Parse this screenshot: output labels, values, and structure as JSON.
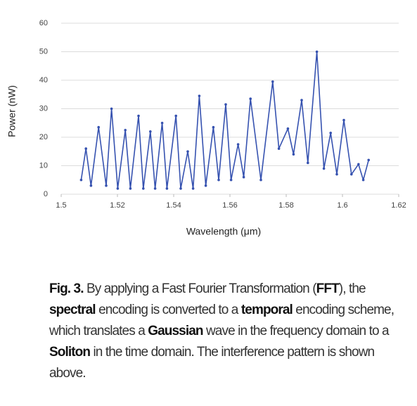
{
  "chart_data": {
    "type": "line",
    "xlabel": "Wavelength (μm)",
    "ylabel": "Power (nW)",
    "xlim": [
      1.5,
      1.62
    ],
    "xticks": [
      1.5,
      1.52,
      1.54,
      1.56,
      1.58,
      1.6,
      1.62
    ],
    "ylim": [
      0,
      60
    ],
    "yticks": [
      0,
      10,
      20,
      30,
      40,
      50,
      60
    ],
    "grid": true,
    "series": [
      {
        "color": "#3652b0",
        "x": [
          1.5071,
          1.5088,
          1.5106,
          1.5133,
          1.516,
          1.5179,
          1.5201,
          1.5228,
          1.5246,
          1.5275,
          1.5292,
          1.5317,
          1.5334,
          1.5359,
          1.5376,
          1.5408,
          1.5425,
          1.545,
          1.5469,
          1.5491,
          1.5514,
          1.5541,
          1.556,
          1.5585,
          1.5604,
          1.5629,
          1.5649,
          1.5673,
          1.571,
          1.5752,
          1.5774,
          1.5806,
          1.5826,
          1.5855,
          1.5877,
          1.5909,
          1.5934,
          1.5958,
          1.598,
          1.6005,
          1.6032,
          1.6057,
          1.6074,
          1.6093
        ],
        "values": [
          5,
          16,
          3,
          23.5,
          3,
          30,
          2,
          22.5,
          2,
          27.5,
          2,
          22,
          2,
          25,
          2,
          27.5,
          2,
          15,
          2,
          34.5,
          3,
          23.5,
          5,
          31.5,
          5,
          17.5,
          6,
          33.5,
          5,
          39.5,
          16,
          23,
          14,
          33,
          11,
          50,
          9,
          21.5,
          7,
          26,
          7,
          10.5,
          5,
          12
        ]
      }
    ]
  },
  "caption": [
    {
      "text": "Fig. 3.",
      "bold": true
    },
    {
      "text": " By applying a Fast Fourier Transformation (",
      "bold": false
    },
    {
      "text": "FFT",
      "bold": true
    },
    {
      "text": "), the ",
      "bold": false
    },
    {
      "text": "spectral",
      "bold": true
    },
    {
      "text": " encoding is converted to a ",
      "bold": false
    },
    {
      "text": "temporal",
      "bold": true
    },
    {
      "text": " encoding scheme, which translates a ",
      "bold": false
    },
    {
      "text": "Gaussian",
      "bold": true
    },
    {
      "text": " wave in the frequency domain to a ",
      "bold": false
    },
    {
      "text": "Soliton",
      "bold": true
    },
    {
      "text": " in the time domain. The interference pattern is shown above.",
      "bold": false
    }
  ]
}
